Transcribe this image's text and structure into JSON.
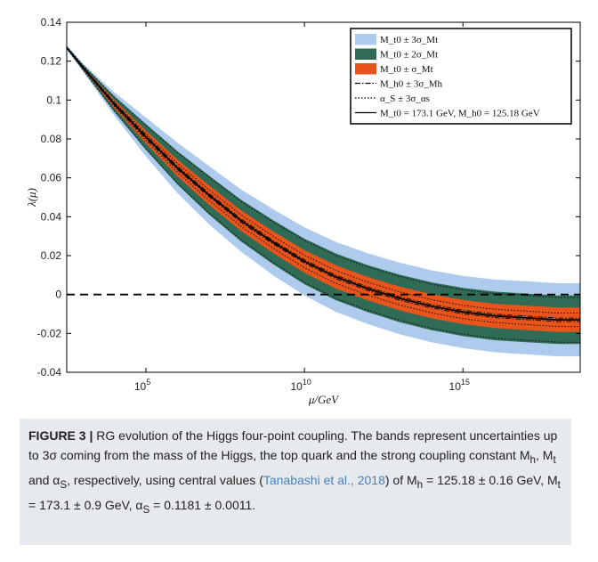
{
  "chart_data": {
    "type": "area",
    "xlabel": "μ/GeV",
    "ylabel": "λ(μ)",
    "x_scale": "log",
    "xlim_log10": [
      2.5,
      18.7
    ],
    "ylim": [
      -0.04,
      0.14
    ],
    "y_ticks": [
      "0.14",
      "0.12",
      "0.1",
      "0.08",
      "0.06",
      "0.04",
      "0.02",
      "0",
      "-0.02",
      "-0.04"
    ],
    "x_ticks": [
      {
        "base": "10",
        "exp": "5",
        "log10": 5
      },
      {
        "base": "10",
        "exp": "10",
        "log10": 10
      },
      {
        "base": "10",
        "exp": "15",
        "log10": 15
      }
    ],
    "grid": false,
    "legend_position": "top-right",
    "log10_mu": [
      2.5,
      3,
      4,
      5,
      6,
      7,
      8,
      9,
      10,
      11,
      12,
      13,
      14,
      15,
      16,
      17,
      18,
      18.7
    ],
    "central": [
      0.127,
      0.117,
      0.098,
      0.081,
      0.065,
      0.051,
      0.038,
      0.027,
      0.017,
      0.009,
      0.003,
      -0.002,
      -0.006,
      -0.009,
      -0.011,
      -0.012,
      -0.013,
      -0.013
    ],
    "bands": [
      {
        "name": "M_t0 ± 3σ_Mt",
        "color": "#aecbee",
        "half_width": [
          0.001,
          0.002,
          0.006,
          0.01,
          0.013,
          0.015,
          0.016,
          0.017,
          0.0175,
          0.018,
          0.0182,
          0.0184,
          0.0185,
          0.0186,
          0.0187,
          0.0188,
          0.0188,
          0.0188
        ]
      },
      {
        "name": "M_t0 ± 2σ_Mt",
        "color": "#2f6b55",
        "half_width": [
          0.0006,
          0.0013,
          0.004,
          0.0066,
          0.0086,
          0.01,
          0.0107,
          0.0113,
          0.0117,
          0.012,
          0.0121,
          0.0122,
          0.0123,
          0.0124,
          0.0125,
          0.0125,
          0.0125,
          0.0125
        ]
      },
      {
        "name": "M_t0 ± σ_Mt",
        "color": "#e8541b",
        "half_width": [
          0.0003,
          0.0007,
          0.002,
          0.0033,
          0.0043,
          0.005,
          0.0053,
          0.0056,
          0.0058,
          0.006,
          0.006,
          0.0061,
          0.0062,
          0.0062,
          0.0062,
          0.0063,
          0.0063,
          0.0063
        ]
      }
    ],
    "variation_lines": [
      {
        "name": "M_h0 ± 3σ_Mh",
        "style": "dashdot",
        "offset": 0.0009
      },
      {
        "name": "α_S ± 3σ_αs",
        "style": "dotted",
        "offset_factor": 0.75
      }
    ],
    "legend": [
      {
        "text": "M_t0 ± 3σ_Mt",
        "kind": "patch",
        "color": "#aecbee"
      },
      {
        "text": "M_t0 ± 2σ_Mt",
        "kind": "patch",
        "color": "#2f6b55"
      },
      {
        "text": "M_t0 ± σ_Mt",
        "kind": "patch",
        "color": "#e8541b"
      },
      {
        "text": "M_h0 ± 3σ_Mh",
        "kind": "line",
        "style": "dashdot"
      },
      {
        "text": "α_S ± 3σ_αs",
        "kind": "line",
        "style": "dotted"
      },
      {
        "text": "M_t0 = 173.1 GeV, M_h0 = 125.18 GeV",
        "kind": "line",
        "style": "solid"
      }
    ],
    "reference_line": {
      "y": 0,
      "style": "dashed"
    }
  },
  "caption": {
    "label": "FIGURE 3 |",
    "text_1": " RG evolution of the Higgs four-point coupling. The bands represent uncertainties up to 3σ coming from the mass of the Higgs, the top quark and the strong coupling constant M",
    "sub_h": "h",
    "text_2": ", M",
    "sub_t": "t",
    "text_3": " and α",
    "sub_s": "S",
    "text_4": ", respectively, using central values (",
    "citation": "Tanabashi et al., 2018",
    "text_5": ") of M",
    "text_6": " = 125.18 ± 0.16 GeV, M",
    "text_7": " = 173.1 ± 0.9 GeV, α",
    "text_8": " = 0.1181 ± 0.0011."
  }
}
